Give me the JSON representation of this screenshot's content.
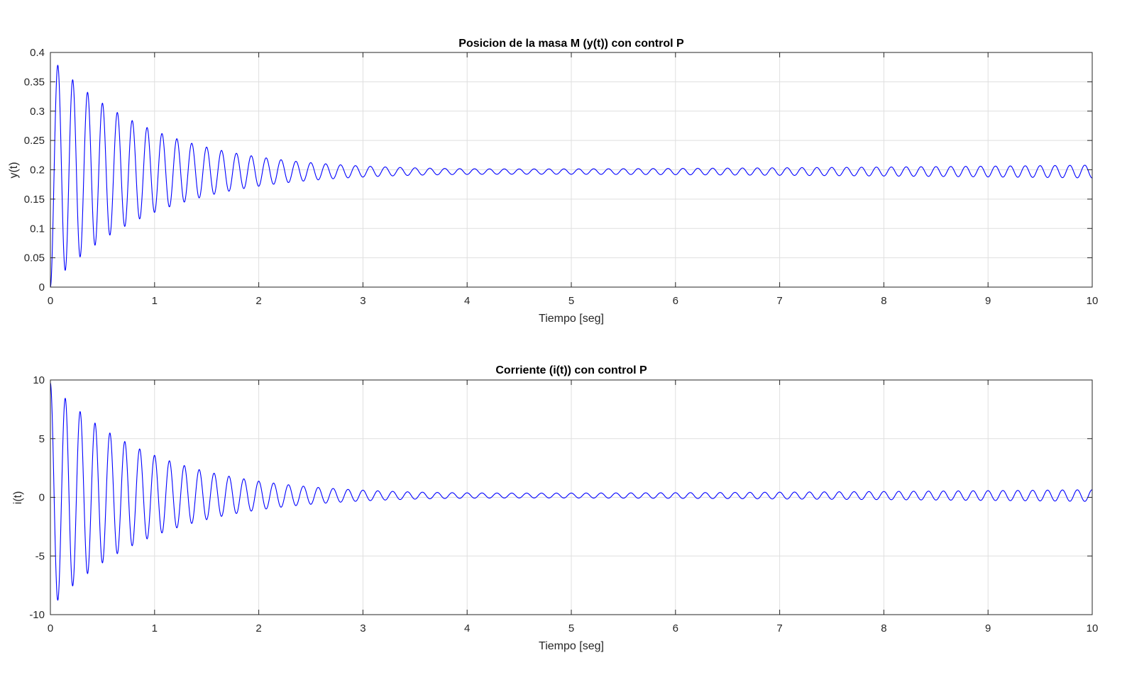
{
  "chart_data": [
    {
      "type": "line",
      "title": "Posicion de la masa M (y(t)) con control P",
      "xlabel": "Tiempo [seg]",
      "ylabel": "y(t)",
      "xlim": [
        0,
        10
      ],
      "ylim": [
        0,
        0.4
      ],
      "xticks": [
        "0",
        "1",
        "2",
        "3",
        "4",
        "5",
        "6",
        "7",
        "8",
        "9",
        "10"
      ],
      "yticks": [
        "0",
        "0.05",
        "0.1",
        "0.15",
        "0.2",
        "0.25",
        "0.3",
        "0.35",
        "0.4"
      ],
      "grid": true,
      "line_color": "#0000ff",
      "signal": {
        "offset": 0.197,
        "oscillation_frequency_hz": 7.0,
        "decay_amplitude_at_t0": 0.195,
        "decay_rate": 1.03,
        "growth_amplitude_at_t10": 0.011,
        "growth_rate": 0.18,
        "peaks": [
          {
            "t": 0.07,
            "y": 0.382
          },
          {
            "t": 0.21,
            "y": 0.363
          },
          {
            "t": 0.35,
            "y": 0.347
          },
          {
            "t": 0.49,
            "y": 0.331
          },
          {
            "t": 0.64,
            "y": 0.318
          },
          {
            "t": 0.78,
            "y": 0.306
          },
          {
            "t": 0.92,
            "y": 0.295
          },
          {
            "t": 1.06,
            "y": 0.285
          },
          {
            "t": 1.2,
            "y": 0.275
          },
          {
            "t": 1.34,
            "y": 0.266
          },
          {
            "t": 1.48,
            "y": 0.258
          },
          {
            "t": 1.62,
            "y": 0.25
          },
          {
            "t": 2.0,
            "y": 0.235
          },
          {
            "t": 2.5,
            "y": 0.218
          },
          {
            "t": 3.0,
            "y": 0.211
          },
          {
            "t": 4.0,
            "y": 0.201
          },
          {
            "t": 5.0,
            "y": 0.199
          },
          {
            "t": 6.0,
            "y": 0.203
          },
          {
            "t": 7.0,
            "y": 0.205
          },
          {
            "t": 8.0,
            "y": 0.206
          },
          {
            "t": 9.0,
            "y": 0.208
          },
          {
            "t": 10.0,
            "y": 0.207
          }
        ],
        "troughs": [
          {
            "t": 0.14,
            "y": 0.02
          },
          {
            "t": 0.28,
            "y": 0.038
          },
          {
            "t": 0.42,
            "y": 0.054
          },
          {
            "t": 0.56,
            "y": 0.068
          },
          {
            "t": 0.7,
            "y": 0.08
          },
          {
            "t": 0.85,
            "y": 0.091
          },
          {
            "t": 0.99,
            "y": 0.103
          },
          {
            "t": 1.27,
            "y": 0.123
          },
          {
            "t": 1.55,
            "y": 0.14
          },
          {
            "t": 2.0,
            "y": 0.16
          },
          {
            "t": 2.5,
            "y": 0.175
          },
          {
            "t": 3.0,
            "y": 0.183
          },
          {
            "t": 4.0,
            "y": 0.193
          },
          {
            "t": 5.0,
            "y": 0.195
          },
          {
            "t": 6.0,
            "y": 0.192
          },
          {
            "t": 7.0,
            "y": 0.19
          },
          {
            "t": 8.0,
            "y": 0.188
          },
          {
            "t": 9.0,
            "y": 0.187
          },
          {
            "t": 10.0,
            "y": 0.188
          }
        ]
      }
    },
    {
      "type": "line",
      "title": "Corriente (i(t)) con control P",
      "xlabel": "Tiempo [seg]",
      "ylabel": "i(t)",
      "xlim": [
        0,
        10
      ],
      "ylim": [
        -10,
        10
      ],
      "xticks": [
        "0",
        "1",
        "2",
        "3",
        "4",
        "5",
        "6",
        "7",
        "8",
        "9",
        "10"
      ],
      "yticks": [
        "-10",
        "-5",
        "0",
        "5",
        "10"
      ],
      "grid": true,
      "line_color": "#0000ff",
      "signal": {
        "offset": 0.15,
        "oscillation_frequency_hz": 7.0,
        "decay_amplitude_at_t0": 9.6,
        "decay_rate": 1.03,
        "growth_amplitude_at_t10": 0.5,
        "growth_rate": 0.18,
        "peaks": [
          {
            "t": 0.0,
            "y": 10.0
          },
          {
            "t": 0.14,
            "y": 9.0
          },
          {
            "t": 0.28,
            "y": 8.2
          },
          {
            "t": 0.42,
            "y": 7.3
          },
          {
            "t": 0.56,
            "y": 6.7
          },
          {
            "t": 0.71,
            "y": 6.0
          },
          {
            "t": 0.85,
            "y": 5.5
          },
          {
            "t": 0.99,
            "y": 4.9
          },
          {
            "t": 2.0,
            "y": 2.3
          },
          {
            "t": 3.0,
            "y": 0.9
          },
          {
            "t": 4.0,
            "y": 0.5
          },
          {
            "t": 5.0,
            "y": 0.4
          },
          {
            "t": 6.0,
            "y": 0.6
          },
          {
            "t": 7.0,
            "y": 0.6
          },
          {
            "t": 8.0,
            "y": 0.7
          },
          {
            "t": 9.0,
            "y": 0.7
          },
          {
            "t": 10.0,
            "y": 0.7
          }
        ],
        "troughs": [
          {
            "t": 0.07,
            "y": -9.1
          },
          {
            "t": 0.21,
            "y": -8.2
          },
          {
            "t": 0.35,
            "y": -7.4
          },
          {
            "t": 0.49,
            "y": -6.6
          },
          {
            "t": 0.64,
            "y": -5.9
          },
          {
            "t": 0.78,
            "y": -5.3
          },
          {
            "t": 0.92,
            "y": -4.7
          },
          {
            "t": 1.06,
            "y": -4.2
          },
          {
            "t": 2.0,
            "y": -2.0
          },
          {
            "t": 3.0,
            "y": -0.6
          },
          {
            "t": 4.0,
            "y": -0.3
          },
          {
            "t": 5.0,
            "y": -0.1
          },
          {
            "t": 6.0,
            "y": -0.2
          },
          {
            "t": 7.0,
            "y": -0.3
          },
          {
            "t": 8.0,
            "y": -0.3
          },
          {
            "t": 9.0,
            "y": -0.4
          },
          {
            "t": 10.0,
            "y": -0.3
          }
        ]
      }
    }
  ]
}
